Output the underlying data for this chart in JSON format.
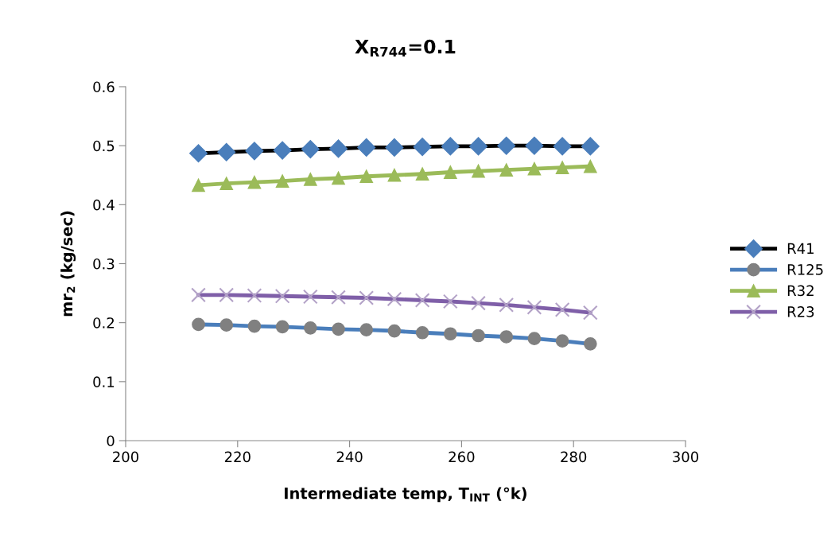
{
  "chart_data": {
    "type": "line",
    "title": "X$_{R744}$=0.1",
    "xlabel": "Intermediate temp, T$_{INT}$ (°k)",
    "ylabel": "mr$_{2}$ (kg/sec)",
    "x": [
      213,
      218,
      223,
      228,
      233,
      238,
      243,
      248,
      253,
      258,
      263,
      268,
      273,
      278,
      283
    ],
    "series": [
      {
        "name": "R41",
        "color": "#000000",
        "marker": "diamond",
        "colors": [
          "#4a7ebb",
          "#4a7ebb",
          "#4a7ebb",
          "#4a7ebb",
          "#4a7ebb",
          "#4a7ebb",
          "#4a7ebb",
          "#4a7ebb",
          "#4a7ebb",
          "#4a7ebb",
          "#4a7ebb",
          "#4a7ebb",
          "#4a7ebb",
          "#4a7ebb",
          "#4a7ebb"
        ],
        "values": [
          0.487,
          0.489,
          0.491,
          0.492,
          0.494,
          0.495,
          0.497,
          0.497,
          0.498,
          0.499,
          0.499,
          0.5,
          0.5,
          0.499,
          0.499
        ]
      },
      {
        "name": "R125",
        "color": "#4a7ebb",
        "marker": "circle",
        "colors": [
          "#808080",
          "#808080",
          "#808080",
          "#808080",
          "#808080",
          "#808080",
          "#808080",
          "#808080",
          "#808080",
          "#808080",
          "#808080",
          "#808080",
          "#808080",
          "#808080",
          "#808080"
        ],
        "values": [
          0.197,
          0.196,
          0.194,
          0.193,
          0.191,
          0.189,
          0.188,
          0.186,
          0.183,
          0.181,
          0.178,
          0.176,
          0.173,
          0.169,
          0.164
        ]
      },
      {
        "name": "R32",
        "color": "#9bbb59",
        "marker": "triangle",
        "colors": [
          "#9bbb59",
          "#9bbb59",
          "#9bbb59",
          "#9bbb59",
          "#9bbb59",
          "#9bbb59",
          "#9bbb59",
          "#9bbb59",
          "#9bbb59",
          "#9bbb59",
          "#9bbb59",
          "#9bbb59",
          "#9bbb59",
          "#9bbb59",
          "#9bbb59"
        ],
        "values": [
          0.433,
          0.436,
          0.438,
          0.44,
          0.443,
          0.445,
          0.448,
          0.45,
          0.452,
          0.455,
          0.457,
          0.459,
          0.461,
          0.463,
          0.465
        ]
      },
      {
        "name": "R23",
        "color": "#7f5fa8",
        "marker": "cross",
        "colors": [
          "#b3a2c7",
          "#b3a2c7",
          "#b3a2c7",
          "#b3a2c7",
          "#b3a2c7",
          "#b3a2c7",
          "#b3a2c7",
          "#b3a2c7",
          "#b3a2c7",
          "#b3a2c7",
          "#b3a2c7",
          "#b3a2c7",
          "#b3a2c7",
          "#b3a2c7",
          "#b3a2c7"
        ],
        "values": [
          0.247,
          0.247,
          0.246,
          0.245,
          0.244,
          0.243,
          0.242,
          0.24,
          0.238,
          0.236,
          0.233,
          0.23,
          0.226,
          0.222,
          0.217
        ]
      }
    ],
    "xlim": [
      200,
      300
    ],
    "xticks": [
      200,
      220,
      240,
      260,
      280,
      300
    ],
    "ylim": [
      0,
      0.6
    ],
    "yticks": [
      0,
      0.1,
      0.2,
      0.3,
      0.4,
      0.5,
      0.6
    ],
    "grid": false,
    "legend": "right"
  }
}
